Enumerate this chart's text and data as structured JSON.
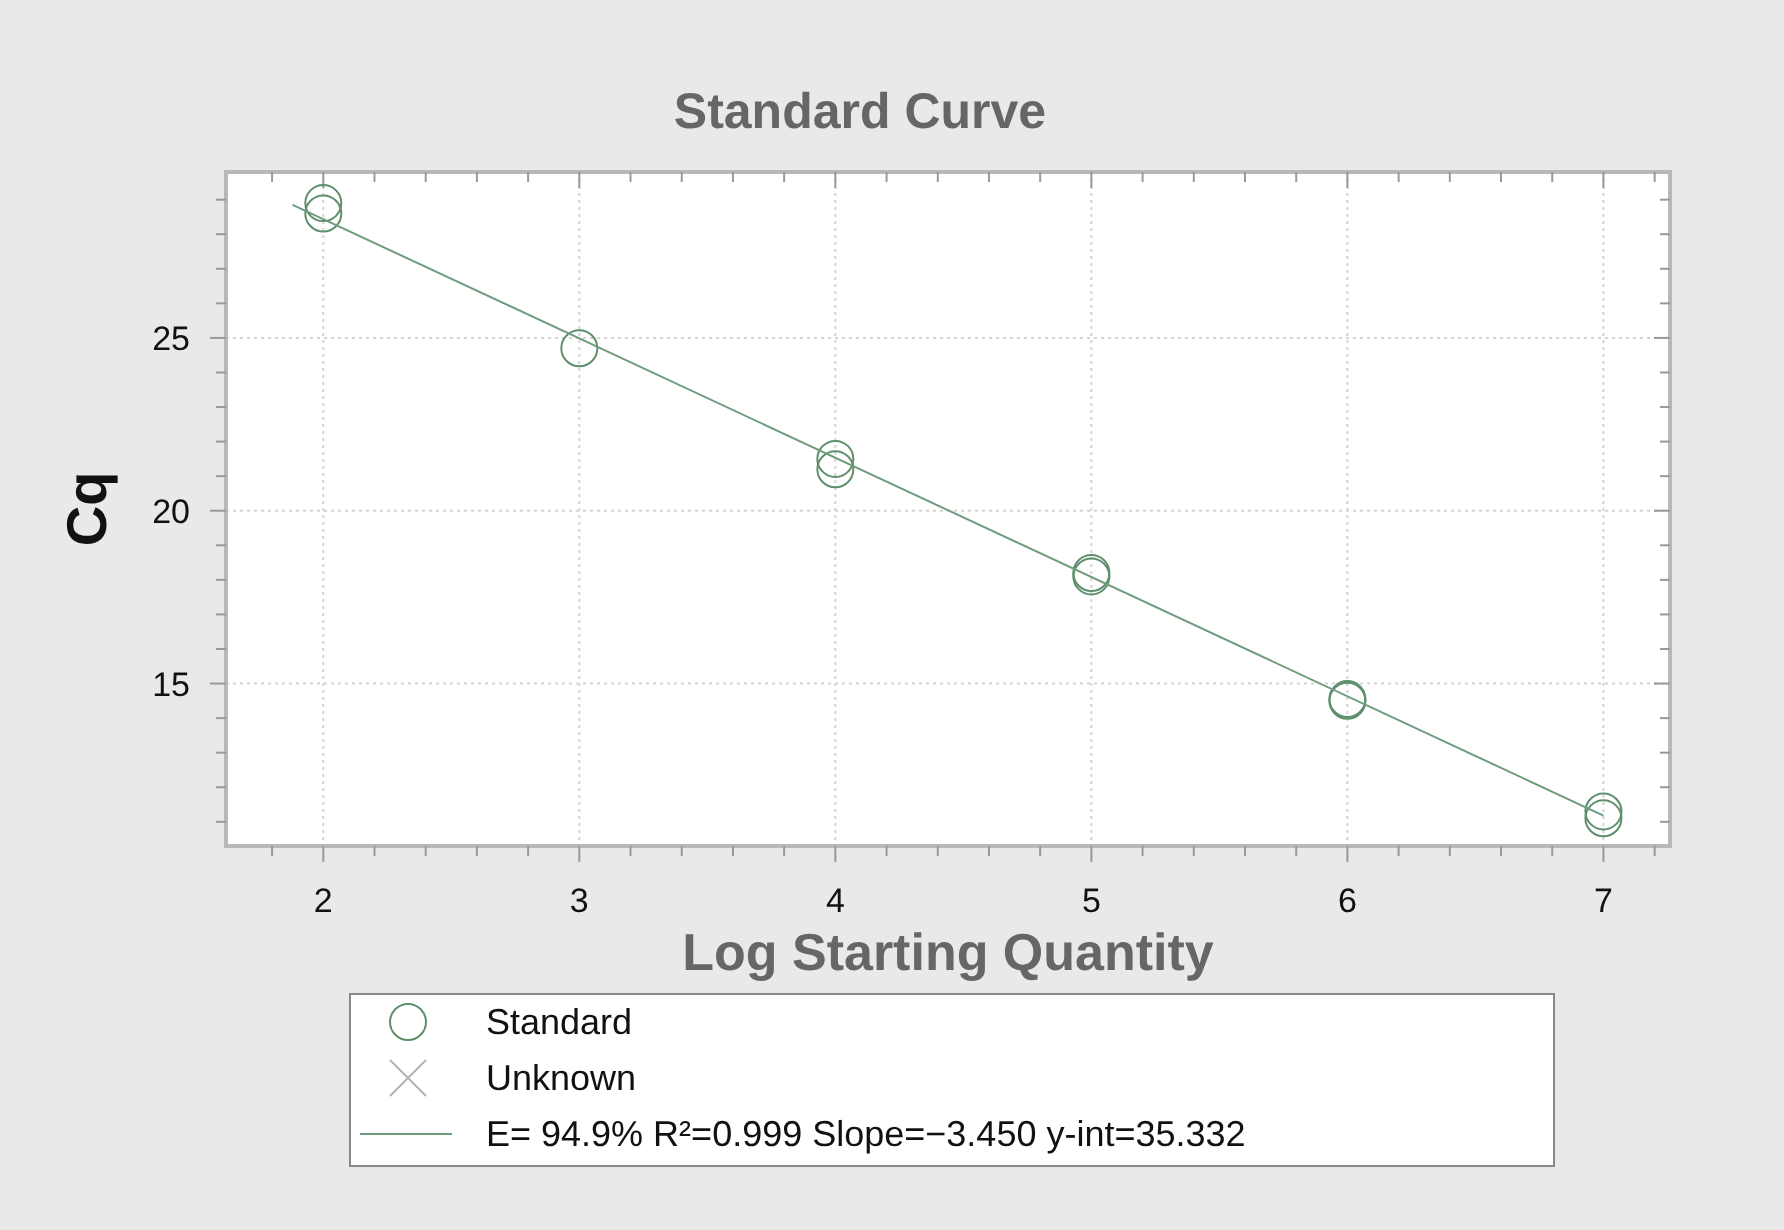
{
  "chart_data": {
    "type": "scatter",
    "title": "Standard Curve",
    "xlabel": "Log Starting Quantity",
    "ylabel": "Cq",
    "xlim": [
      1.62,
      7.26
    ],
    "xticks": [
      {
        "value": 1.8,
        "label": null
      },
      2,
      {
        "value": 2.2,
        "label": null
      },
      {
        "value": 2.4,
        "label": null
      },
      {
        "value": 2.6,
        "label": null
      },
      {
        "value": 2.8,
        "label": null
      },
      3,
      {
        "value": 3.2,
        "label": null
      },
      {
        "value": 3.4,
        "label": null
      },
      {
        "value": 3.6,
        "label": null
      },
      {
        "value": 3.8,
        "label": null
      },
      4,
      {
        "value": 4.2,
        "label": null
      },
      {
        "value": 4.4,
        "label": null
      },
      {
        "value": 4.6,
        "label": null
      },
      {
        "value": 4.8,
        "label": null
      },
      5,
      {
        "value": 5.2,
        "label": null
      },
      {
        "value": 5.4,
        "label": null
      },
      {
        "value": 5.6,
        "label": null
      },
      {
        "value": 5.8,
        "label": null
      },
      6,
      {
        "value": 6.2,
        "label": null
      },
      {
        "value": 6.4,
        "label": null
      },
      {
        "value": 6.6,
        "label": null
      },
      {
        "value": 6.8,
        "label": null
      },
      7,
      {
        "value": 7.2,
        "label": null
      }
    ],
    "ylim": [
      10.3,
      29.8
    ],
    "yticks": [
      {
        "value": 11,
        "label": null
      },
      {
        "value": 12,
        "label": null
      },
      {
        "value": 13,
        "label": null
      },
      {
        "value": 14,
        "label": null
      },
      15,
      {
        "value": 16,
        "label": null
      },
      {
        "value": 17,
        "label": null
      },
      {
        "value": 18,
        "label": null
      },
      {
        "value": 19,
        "label": null
      },
      20,
      {
        "value": 21,
        "label": null
      },
      {
        "value": 22,
        "label": null
      },
      {
        "value": 23,
        "label": null
      },
      {
        "value": 24,
        "label": null
      },
      25,
      {
        "value": 26,
        "label": null
      },
      {
        "value": 27,
        "label": null
      },
      {
        "value": 28,
        "label": null
      },
      {
        "value": 29,
        "label": null
      }
    ],
    "grid": true,
    "legend": "bottom",
    "series": [
      {
        "name": "Standard",
        "marker": "circle",
        "color": "#5e8f6c",
        "x": [
          2,
          2,
          3,
          4,
          4,
          5,
          5,
          6,
          6,
          7,
          7
        ],
        "values": [
          28.9,
          28.6,
          24.7,
          21.5,
          21.2,
          18.2,
          18.1,
          14.55,
          14.5,
          11.3,
          11.1
        ]
      },
      {
        "name": "Unknown",
        "marker": "cross",
        "color": "#b4b4b4"
      },
      {
        "name": "E= 94.9% R²=0.999 Slope=−3.450 y-int=35.332",
        "type": "line",
        "color": "#6f9c7d",
        "x": [
          1.88,
          7
        ],
        "values": [
          28.85,
          11.18
        ]
      }
    ]
  }
}
